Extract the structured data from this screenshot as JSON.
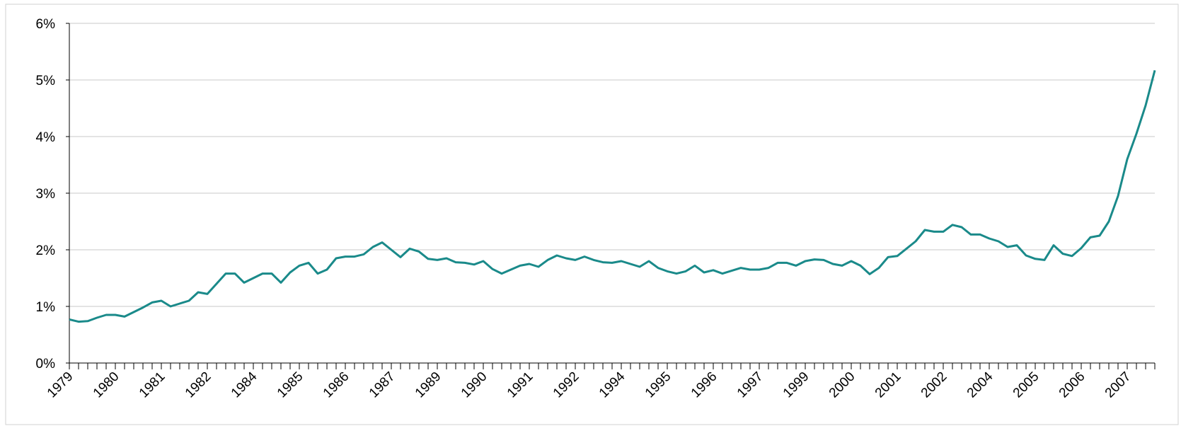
{
  "chart_data": {
    "type": "line",
    "categories": [
      "1979",
      null,
      null,
      null,
      null,
      "1980",
      null,
      null,
      null,
      null,
      "1981",
      null,
      null,
      null,
      null,
      "1982",
      null,
      null,
      null,
      null,
      "1984",
      null,
      null,
      null,
      null,
      "1985",
      null,
      null,
      null,
      null,
      "1986",
      null,
      null,
      null,
      null,
      "1987",
      null,
      null,
      null,
      null,
      "1989",
      null,
      null,
      null,
      null,
      "1990",
      null,
      null,
      null,
      null,
      "1991",
      null,
      null,
      null,
      null,
      "1992",
      null,
      null,
      null,
      null,
      "1994",
      null,
      null,
      null,
      null,
      "1995",
      null,
      null,
      null,
      null,
      "1996",
      null,
      null,
      null,
      null,
      "1997",
      null,
      null,
      null,
      null,
      "1999",
      null,
      null,
      null,
      null,
      "2000",
      null,
      null,
      null,
      null,
      "2001",
      null,
      null,
      null,
      null,
      "2002",
      null,
      null,
      null,
      null,
      "2004",
      null,
      null,
      null,
      null,
      "2005",
      null,
      null,
      null,
      null,
      "2006",
      null,
      null,
      null,
      null,
      "2007",
      null,
      null,
      null
    ],
    "series": [
      {
        "color": "#1a8a8a",
        "values": [
          0.77,
          0.73,
          0.74,
          0.8,
          0.85,
          0.85,
          0.82,
          0.9,
          0.98,
          1.07,
          1.1,
          1.0,
          1.05,
          1.1,
          1.25,
          1.22,
          1.4,
          1.58,
          1.58,
          1.42,
          1.5,
          1.58,
          1.58,
          1.42,
          1.6,
          1.72,
          1.77,
          1.58,
          1.65,
          1.85,
          1.88,
          1.88,
          1.92,
          2.05,
          2.13,
          2.0,
          1.87,
          2.02,
          1.97,
          1.84,
          1.82,
          1.85,
          1.78,
          1.77,
          1.74,
          1.8,
          1.66,
          1.58,
          1.65,
          1.72,
          1.75,
          1.7,
          1.82,
          1.9,
          1.85,
          1.82,
          1.88,
          1.82,
          1.78,
          1.77,
          1.8,
          1.75,
          1.7,
          1.8,
          1.68,
          1.62,
          1.58,
          1.62,
          1.72,
          1.6,
          1.64,
          1.58,
          1.63,
          1.68,
          1.65,
          1.65,
          1.68,
          1.77,
          1.77,
          1.72,
          1.8,
          1.83,
          1.82,
          1.75,
          1.72,
          1.8,
          1.72,
          1.57,
          1.68,
          1.87,
          1.89,
          2.02,
          2.15,
          2.35,
          2.32,
          2.32,
          2.44,
          2.4,
          2.27,
          2.27,
          2.2,
          2.15,
          2.05,
          2.08,
          1.9,
          1.84,
          1.82,
          2.08,
          1.93,
          1.89,
          2.03,
          2.22,
          2.25,
          2.5,
          2.95,
          3.6,
          4.05,
          4.55,
          5.17
        ]
      }
    ],
    "ylim": [
      0,
      6
    ],
    "yticks": [
      {
        "value": 0,
        "label": "0%"
      },
      {
        "value": 1,
        "label": "1%"
      },
      {
        "value": 2,
        "label": "2%"
      },
      {
        "value": 3,
        "label": "3%"
      },
      {
        "value": 4,
        "label": "4%"
      },
      {
        "value": 5,
        "label": "5%"
      },
      {
        "value": 6,
        "label": "6%"
      }
    ],
    "grid": true
  }
}
